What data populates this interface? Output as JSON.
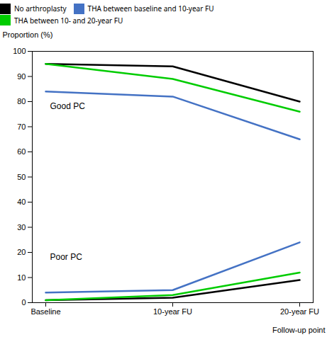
{
  "chart_data": {
    "type": "line",
    "xlabel": "Follow-up point",
    "ylabel": "Proportion (%)",
    "categories": [
      "Baseline",
      "10-year FU",
      "20-year FU"
    ],
    "series": [
      {
        "name": "No arthroplasty",
        "color": "#000000",
        "values": [
          95,
          94,
          80
        ]
      },
      {
        "name": "THA between baseline and 10-year FU",
        "color": "#4472C4",
        "values": [
          84,
          82,
          65
        ]
      },
      {
        "name": "THA between 10- and 20-year FU",
        "color": "#00CC00",
        "values": [
          95,
          89,
          76
        ]
      },
      {
        "name": "No arthroplasty",
        "color": "#000000",
        "values": [
          1,
          2,
          9
        ]
      },
      {
        "name": "THA between baseline and 10-year FU",
        "color": "#4472C4",
        "values": [
          4,
          5,
          24
        ]
      },
      {
        "name": "THA between 10- and 20-year FU",
        "color": "#00CC00",
        "values": [
          1,
          3,
          12
        ]
      }
    ],
    "annotations": [
      "Good PC",
      "Poor PC"
    ],
    "ylim": [
      0,
      100
    ],
    "yticks": [
      0,
      10,
      20,
      30,
      40,
      50,
      60,
      70,
      80,
      90,
      100
    ],
    "grid": false,
    "legend": "top"
  }
}
